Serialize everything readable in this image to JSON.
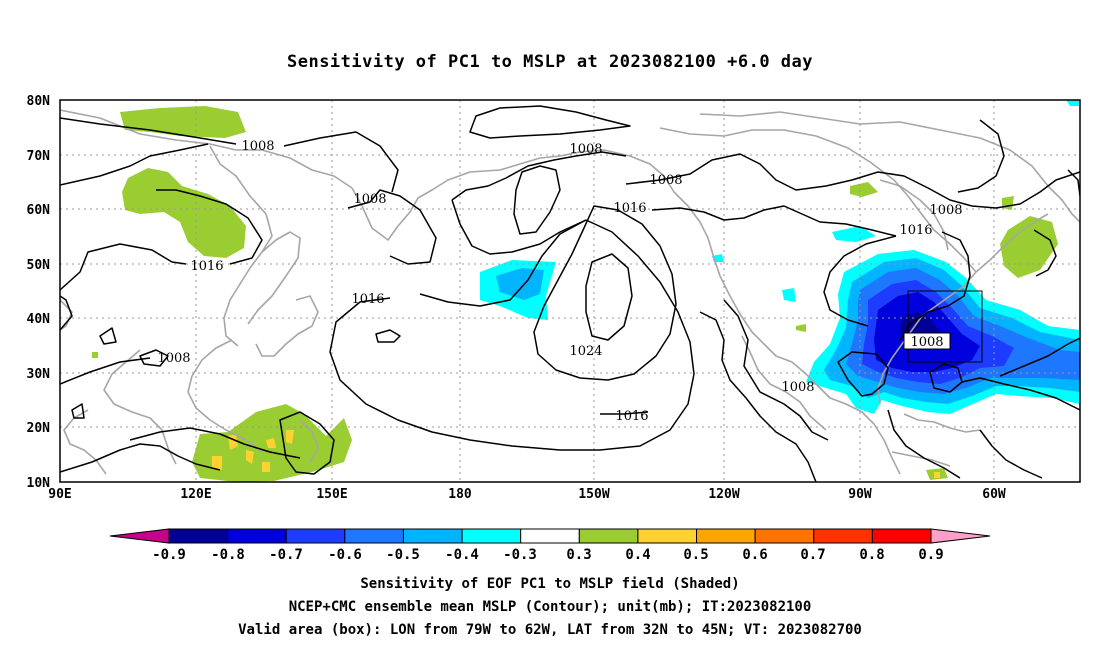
{
  "figure": {
    "title": "Sensitivity of PC1 to MSLP at 2023082100 +6.0 day"
  },
  "map": {
    "lon_labels": [
      "90E",
      "120E",
      "150E",
      "180",
      "150W",
      "120W",
      "90W",
      "60W"
    ],
    "lat_labels": [
      "80N",
      "70N",
      "60N",
      "50N",
      "40N",
      "30N",
      "20N",
      "10N"
    ],
    "contour_labels": [
      "1008",
      "1008",
      "1008",
      "1008",
      "1008",
      "1016",
      "1016",
      "1016",
      "1016",
      "1024",
      "1008",
      "1008",
      "1008",
      "1016"
    ],
    "valid_box": {
      "lon_west": -79,
      "lon_east": -62,
      "lat_south": 32,
      "lat_north": 45
    },
    "colors": {
      "coastline": "#a6a6a6",
      "contour": "#000000",
      "grid": "#9a9a9a"
    }
  },
  "colorbar": {
    "labels": [
      "-0.9",
      "-0.8",
      "-0.7",
      "-0.6",
      "-0.5",
      "-0.4",
      "-0.3",
      "0.3",
      "0.4",
      "0.5",
      "0.6",
      "0.7",
      "0.8",
      "0.9"
    ],
    "colors": [
      "#c8008c",
      "#000096",
      "#0000dc",
      "#1e3cff",
      "#1e78ff",
      "#00b4ff",
      "#00ffff",
      "#ffffff",
      "#9acd32",
      "#ffd232",
      "#ffa500",
      "#ff7300",
      "#ff3200",
      "#ff0000",
      "#ffa0c8"
    ],
    "extend": "both"
  },
  "caption": {
    "line1": "Sensitivity of EOF PC1 to MSLP field (Shaded)",
    "line2": "NCEP+CMC ensemble mean MSLP (Contour); unit(mb); IT:2023082100",
    "line3": "Valid area (box): LON from 79W to 62W, LAT from 32N to 45N; VT: 2023082700"
  }
}
